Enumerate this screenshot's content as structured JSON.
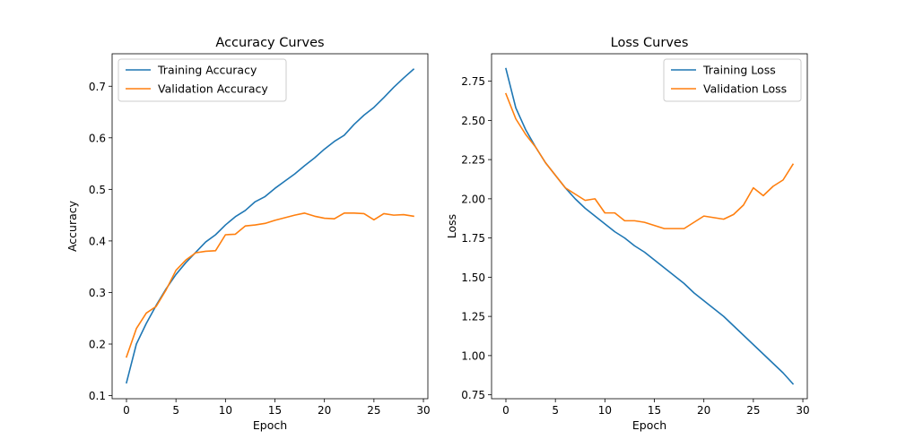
{
  "chart_data": [
    {
      "type": "line",
      "title": "Accuracy Curves",
      "xlabel": "Epoch",
      "ylabel": "Accuracy",
      "xlim": [
        -1.45,
        30.45
      ],
      "ylim": [
        0.094,
        0.763
      ],
      "xticks": [
        0,
        5,
        10,
        15,
        20,
        25,
        30
      ],
      "yticks": [
        0.1,
        0.2,
        0.3,
        0.4,
        0.5,
        0.6,
        0.7
      ],
      "ytick_labels": [
        "0.1",
        "0.2",
        "0.3",
        "0.4",
        "0.5",
        "0.6",
        "0.7"
      ],
      "grid": false,
      "legend_loc": "upper-left",
      "x": [
        0,
        1,
        2,
        3,
        4,
        5,
        6,
        7,
        8,
        9,
        10,
        11,
        12,
        13,
        14,
        15,
        16,
        17,
        18,
        19,
        20,
        21,
        22,
        23,
        24,
        25,
        26,
        27,
        28,
        29
      ],
      "series": [
        {
          "name": "Training Accuracy",
          "color": "#1f77b4",
          "values": [
            0.125,
            0.2,
            0.24,
            0.275,
            0.307,
            0.335,
            0.358,
            0.378,
            0.398,
            0.412,
            0.431,
            0.447,
            0.459,
            0.476,
            0.486,
            0.502,
            0.516,
            0.53,
            0.546,
            0.561,
            0.578,
            0.593,
            0.605,
            0.626,
            0.644,
            0.659,
            0.678,
            0.698,
            0.716,
            0.733
          ]
        },
        {
          "name": "Validation Accuracy",
          "color": "#ff7f0e",
          "values": [
            0.175,
            0.23,
            0.26,
            0.273,
            0.305,
            0.343,
            0.363,
            0.377,
            0.38,
            0.381,
            0.412,
            0.413,
            0.429,
            0.431,
            0.434,
            0.44,
            0.445,
            0.45,
            0.454,
            0.448,
            0.444,
            0.443,
            0.454,
            0.454,
            0.453,
            0.441,
            0.453,
            0.45,
            0.451,
            0.448
          ]
        }
      ]
    },
    {
      "type": "line",
      "title": "Loss Curves",
      "xlabel": "Epoch",
      "ylabel": "Loss",
      "xlim": [
        -1.45,
        30.45
      ],
      "ylim": [
        0.725,
        2.925
      ],
      "xticks": [
        0,
        5,
        10,
        15,
        20,
        25,
        30
      ],
      "yticks": [
        0.75,
        1.0,
        1.25,
        1.5,
        1.75,
        2.0,
        2.25,
        2.5,
        2.75
      ],
      "ytick_labels": [
        "0.75",
        "1.00",
        "1.25",
        "1.50",
        "1.75",
        "2.00",
        "2.25",
        "2.50",
        "2.75"
      ],
      "grid": false,
      "legend_loc": "upper-right",
      "x": [
        0,
        1,
        2,
        3,
        4,
        5,
        6,
        7,
        8,
        9,
        10,
        11,
        12,
        13,
        14,
        15,
        16,
        17,
        18,
        19,
        20,
        21,
        22,
        23,
        24,
        25,
        26,
        27,
        28,
        29
      ],
      "series": [
        {
          "name": "Training Loss",
          "color": "#1f77b4",
          "values": [
            2.83,
            2.58,
            2.44,
            2.33,
            2.23,
            2.15,
            2.07,
            2.0,
            1.94,
            1.89,
            1.84,
            1.79,
            1.75,
            1.7,
            1.66,
            1.61,
            1.56,
            1.51,
            1.46,
            1.4,
            1.35,
            1.3,
            1.25,
            1.19,
            1.13,
            1.07,
            1.01,
            0.95,
            0.89,
            0.82
          ]
        },
        {
          "name": "Validation Loss",
          "color": "#ff7f0e",
          "values": [
            2.67,
            2.51,
            2.41,
            2.33,
            2.23,
            2.15,
            2.07,
            2.03,
            1.99,
            2.0,
            1.91,
            1.91,
            1.86,
            1.86,
            1.85,
            1.83,
            1.81,
            1.81,
            1.81,
            1.85,
            1.89,
            1.88,
            1.87,
            1.9,
            1.96,
            2.07,
            2.02,
            2.08,
            2.12,
            2.22
          ]
        }
      ]
    }
  ]
}
